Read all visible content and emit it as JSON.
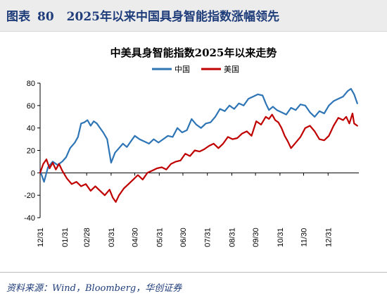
{
  "figure": {
    "label": "图表",
    "number": "80",
    "caption": "2025年以来中国具身智能指数涨幅领先"
  },
  "source": "资料来源：Wind，Bloomberg，华创证券",
  "colors": {
    "china": "#2e75b6",
    "us": "#c00000",
    "axis": "#000000"
  },
  "chart_data": {
    "type": "line",
    "title": "中美具身智能指数2025年以来走势",
    "xlabel": "",
    "ylabel": "",
    "ylim": [
      -40,
      80
    ],
    "yticks": [
      -40,
      -20,
      0,
      20,
      40,
      60,
      80
    ],
    "xlim": [
      0,
      404
    ],
    "x_tick_labels": [
      "12/31",
      "01/31",
      "02/28",
      "03/31",
      "04/30",
      "05/31",
      "06/30",
      "07/31",
      "08/31",
      "09/30",
      "10/31",
      "11/30",
      "12/31"
    ],
    "x_tick_days": [
      0,
      31,
      59,
      90,
      120,
      151,
      181,
      212,
      243,
      273,
      304,
      334,
      365
    ],
    "legend": "top-center",
    "grid": false,
    "series": [
      {
        "name": "中国",
        "color": "#2e75b6",
        "x": [
          0,
          5,
          10,
          16,
          22,
          28,
          33,
          38,
          44,
          48,
          52,
          56,
          60,
          64,
          68,
          72,
          76,
          80,
          85,
          90,
          95,
          100,
          105,
          110,
          115,
          120,
          126,
          132,
          138,
          144,
          150,
          156,
          162,
          168,
          174,
          180,
          186,
          192,
          198,
          204,
          210,
          216,
          222,
          228,
          234,
          240,
          246,
          252,
          258,
          264,
          270,
          276,
          282,
          286,
          290,
          295,
          300,
          306,
          312,
          318,
          324,
          330,
          336,
          342,
          348,
          354,
          360,
          366,
          372,
          378,
          384,
          390,
          394,
          398,
          402
        ],
        "values": [
          2,
          -8,
          5,
          10,
          7,
          10,
          14,
          22,
          27,
          32,
          44,
          45,
          47,
          42,
          46,
          44,
          40,
          36,
          30,
          9,
          18,
          22,
          26,
          23,
          28,
          33,
          30,
          28,
          26,
          30,
          27,
          30,
          33,
          32,
          40,
          36,
          38,
          48,
          43,
          40,
          44,
          45,
          50,
          57,
          55,
          60,
          57,
          62,
          60,
          66,
          68,
          70,
          69,
          62,
          56,
          59,
          56,
          54,
          52,
          58,
          56,
          61,
          60,
          54,
          50,
          55,
          53,
          60,
          64,
          66,
          68,
          73,
          75,
          70,
          62
        ]
      },
      {
        "name": "美国",
        "color": "#c00000",
        "x": [
          0,
          4,
          8,
          12,
          16,
          20,
          24,
          28,
          34,
          40,
          46,
          52,
          58,
          64,
          70,
          76,
          82,
          88,
          92,
          96,
          100,
          106,
          112,
          118,
          124,
          130,
          136,
          142,
          148,
          154,
          160,
          166,
          172,
          178,
          184,
          190,
          196,
          202,
          208,
          214,
          220,
          226,
          232,
          238,
          244,
          250,
          256,
          262,
          268,
          274,
          280,
          286,
          290,
          294,
          298,
          302,
          306,
          310,
          314,
          318,
          324,
          330,
          336,
          342,
          348,
          354,
          360,
          366,
          372,
          378,
          384,
          388,
          392,
          396,
          398,
          402
        ],
        "values": [
          0,
          8,
          12,
          4,
          9,
          3,
          8,
          2,
          -5,
          -10,
          -8,
          -12,
          -10,
          -16,
          -12,
          -16,
          -20,
          -15,
          -22,
          -26,
          -20,
          -14,
          -10,
          -6,
          -2,
          -6,
          0,
          2,
          4,
          5,
          3,
          8,
          10,
          11,
          17,
          15,
          20,
          19,
          21,
          24,
          26,
          22,
          26,
          32,
          30,
          31,
          35,
          37,
          33,
          46,
          43,
          50,
          48,
          52,
          47,
          45,
          40,
          33,
          28,
          22,
          27,
          32,
          40,
          42,
          37,
          30,
          29,
          33,
          42,
          49,
          47,
          50,
          44,
          53,
          44,
          42
        ]
      }
    ]
  }
}
